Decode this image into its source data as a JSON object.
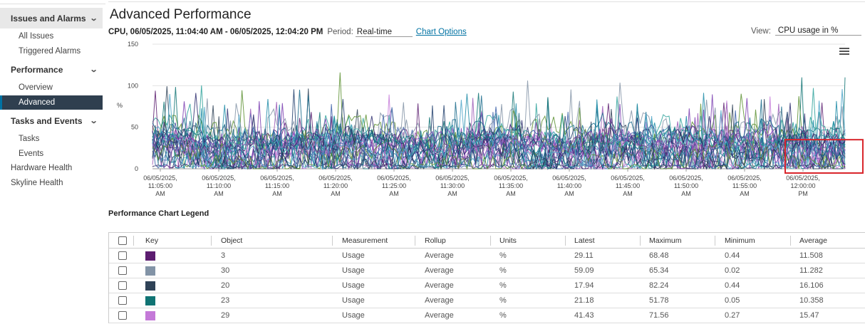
{
  "sidebar": {
    "groups": [
      {
        "label": "Issues and Alarms"
      },
      {
        "label": "Performance"
      },
      {
        "label": "Tasks and Events"
      }
    ],
    "items": {
      "all_issues": "All Issues",
      "triggered_alarms": "Triggered Alarms",
      "overview": "Overview",
      "advanced": "Advanced",
      "tasks": "Tasks",
      "events": "Events",
      "hardware_health": "Hardware Health",
      "skyline_health": "Skyline Health"
    }
  },
  "header": {
    "title": "Advanced Performance",
    "range": "CPU, 06/05/2025, 11:04:40 AM - 06/05/2025, 12:04:20 PM",
    "period_label": "Period:",
    "period_value": "Real-time",
    "chart_options": "Chart Options",
    "view_label": "View:",
    "view_value": "CPU usage in %"
  },
  "chart_data": {
    "type": "line",
    "ylabel": "%",
    "ylim": [
      0,
      150
    ],
    "yticks": [
      "0",
      "50",
      "100",
      "150"
    ],
    "x_ticks": [
      [
        "06/05/2025,",
        "11:05:00",
        "AM"
      ],
      [
        "06/05/2025,",
        "11:10:00",
        "AM"
      ],
      [
        "06/05/2025,",
        "11:15:00",
        "AM"
      ],
      [
        "06/05/2025,",
        "11:20:00",
        "AM"
      ],
      [
        "06/05/2025,",
        "11:25:00",
        "AM"
      ],
      [
        "06/05/2025,",
        "11:30:00",
        "AM"
      ],
      [
        "06/05/2025,",
        "11:35:00",
        "AM"
      ],
      [
        "06/05/2025,",
        "11:40:00",
        "AM"
      ],
      [
        "06/05/2025,",
        "11:45:00",
        "AM"
      ],
      [
        "06/05/2025,",
        "11:50:00",
        "AM"
      ],
      [
        "06/05/2025,",
        "11:55:00",
        "AM"
      ],
      [
        "06/05/2025,",
        "12:00:00",
        "PM"
      ]
    ],
    "grid": true,
    "legend": "table below chart",
    "series_count_approx": 30,
    "value_range_typical": [
      0,
      95
    ],
    "peak_value": 125,
    "highlight_annotation": {
      "shape": "red rectangle",
      "color": "#d9262c",
      "x_range": [
        "11:59:00 AM",
        "12:04:20 PM"
      ],
      "y_range": [
        0,
        35
      ]
    },
    "series": [
      {
        "name": "3",
        "color": "#5c1d70",
        "latest": 29.11,
        "maximum": 68.48,
        "minimum": 0.44,
        "average": 11.508
      },
      {
        "name": "30",
        "color": "#8293a6",
        "latest": 59.09,
        "maximum": 65.34,
        "minimum": 0.02,
        "average": 11.282
      },
      {
        "name": "20",
        "color": "#2f4257",
        "latest": 17.94,
        "maximum": 82.24,
        "minimum": 0.44,
        "average": 16.106
      },
      {
        "name": "23",
        "color": "#0f7373",
        "latest": 21.18,
        "maximum": 51.78,
        "minimum": 0.05,
        "average": 10.358
      },
      {
        "name": "29",
        "color": "#c479d8",
        "latest": 41.43,
        "maximum": 71.56,
        "minimum": 0.27,
        "average": 15.47
      }
    ]
  },
  "legend": {
    "title": "Performance Chart Legend",
    "columns": [
      "Key",
      "Object",
      "Measurement",
      "Rollup",
      "Units",
      "Latest",
      "Maximum",
      "Minimum",
      "Average"
    ],
    "rows": [
      {
        "object": "3",
        "measurement": "Usage",
        "rollup": "Average",
        "units": "%",
        "latest": "29.11",
        "maximum": "68.48",
        "minimum": "0.44",
        "average": "11.508",
        "color": "#5c1d70"
      },
      {
        "object": "30",
        "measurement": "Usage",
        "rollup": "Average",
        "units": "%",
        "latest": "59.09",
        "maximum": "65.34",
        "minimum": "0.02",
        "average": "11.282",
        "color": "#8293a6"
      },
      {
        "object": "20",
        "measurement": "Usage",
        "rollup": "Average",
        "units": "%",
        "latest": "17.94",
        "maximum": "82.24",
        "minimum": "0.44",
        "average": "16.106",
        "color": "#2f4257"
      },
      {
        "object": "23",
        "measurement": "Usage",
        "rollup": "Average",
        "units": "%",
        "latest": "21.18",
        "maximum": "51.78",
        "minimum": "0.05",
        "average": "10.358",
        "color": "#0f7373"
      },
      {
        "object": "29",
        "measurement": "Usage",
        "rollup": "Average",
        "units": "%",
        "latest": "41.43",
        "maximum": "71.56",
        "minimum": "0.27",
        "average": "15.47",
        "color": "#c479d8"
      }
    ]
  }
}
